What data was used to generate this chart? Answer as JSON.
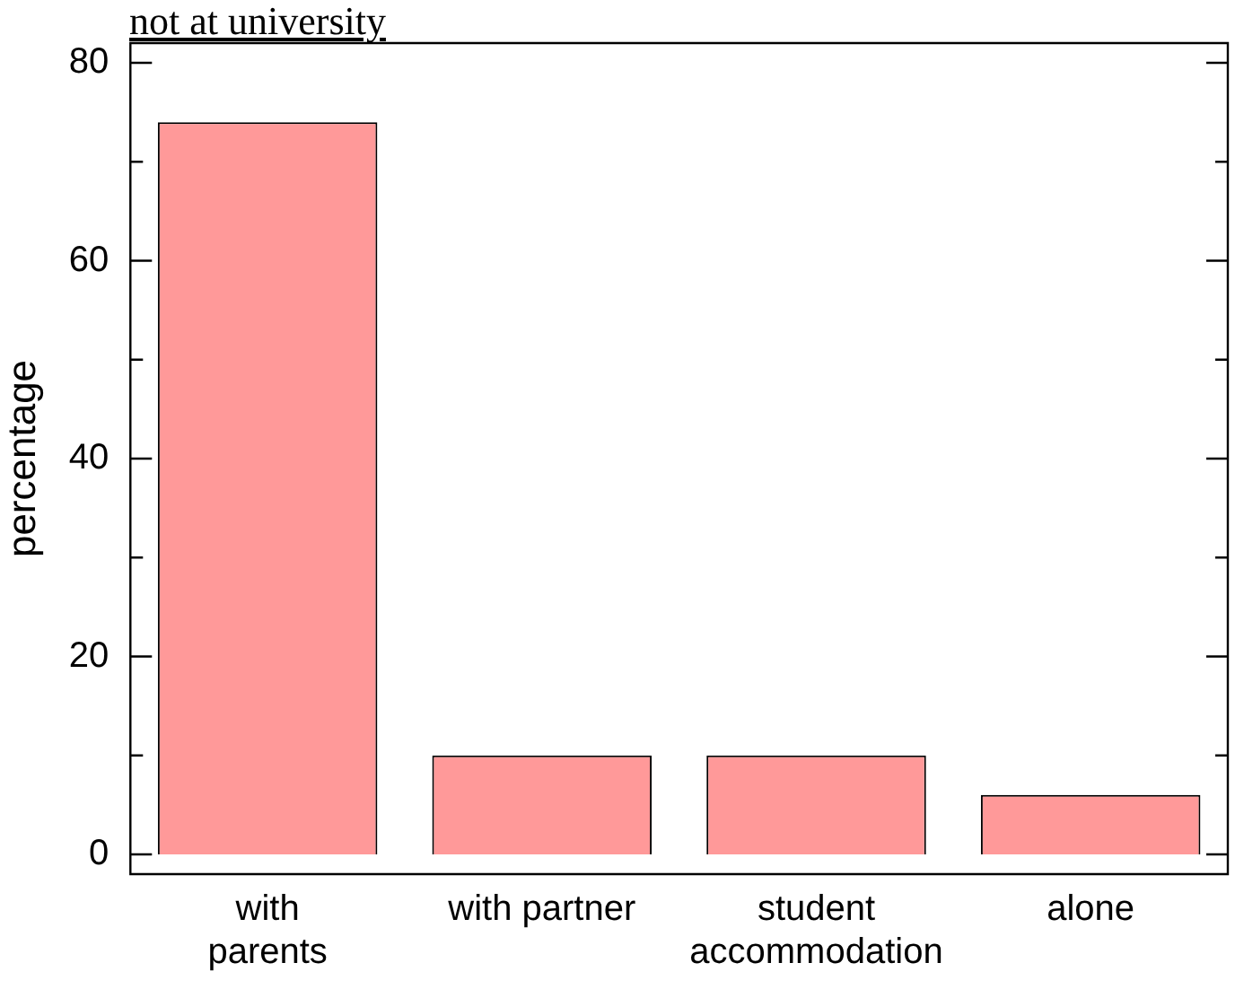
{
  "chart_data": {
    "type": "bar",
    "title": "not at university",
    "ylabel": "percentage",
    "categories": [
      "with\nparents",
      "with partner",
      "student\naccommodation",
      "alone"
    ],
    "values": [
      74,
      10,
      10,
      6
    ],
    "color": "#ff9999",
    "ylim": [
      -2,
      82
    ],
    "yticks": [
      0,
      {
        "value": 10,
        "label": null
      },
      20,
      {
        "value": 30,
        "label": null
      },
      40,
      {
        "value": 50,
        "label": null
      },
      60,
      {
        "value": 70,
        "label": null
      },
      80
    ],
    "grid": false,
    "legend": false
  }
}
